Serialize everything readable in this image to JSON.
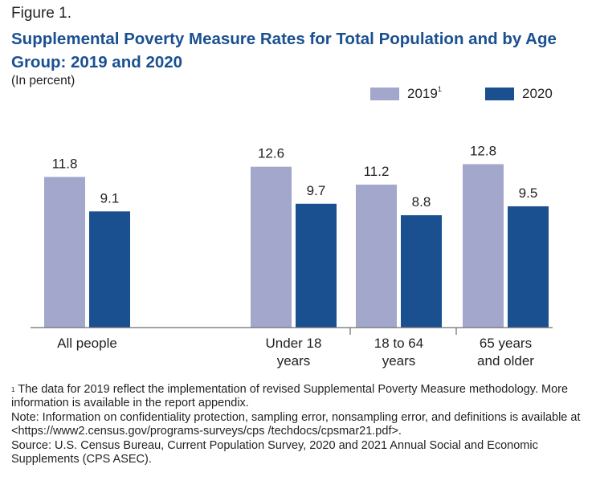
{
  "figure_label": "Figure 1.",
  "chart_data": {
    "type": "bar",
    "title": "Supplemental Poverty Measure Rates for Total Population and by Age Group: 2019 and 2020",
    "subtitle": "(In percent)",
    "categories": [
      "All people",
      "Under 18 years",
      "18 to 64 years",
      "65 years and older"
    ],
    "category_lines": [
      [
        "All people"
      ],
      [
        "Under 18",
        "years"
      ],
      [
        "18 to 64",
        "years"
      ],
      [
        "65 years",
        "and older"
      ]
    ],
    "series": [
      {
        "name": "2019",
        "superscript": "1",
        "color": "#a2a7cb",
        "values": [
          11.8,
          12.6,
          11.2,
          12.8
        ]
      },
      {
        "name": "2020",
        "superscript": "",
        "color": "#1a5090",
        "values": [
          9.1,
          9.7,
          8.8,
          9.5
        ]
      }
    ],
    "ylim": [
      0,
      14
    ],
    "grid": false,
    "legend_position": "top-right",
    "xlabel": "",
    "ylabel": ""
  },
  "footnotes": {
    "note1_marker": "1",
    "note1_text": " The data for 2019 reflect the implementation of revised Supplemental Poverty Measure methodology. More information is available in the report appendix.",
    "note2": "Note: Information on confidentiality protection, sampling error, nonsampling error, and definitions is available at <https://www2.census.gov/programs-surveys/cps /techdocs/cpsmar21.pdf>.",
    "source": "Source: U.S. Census Bureau, Current Population Survey, 2020 and 2021 Annual Social and Economic Supplements (CPS ASEC)."
  }
}
